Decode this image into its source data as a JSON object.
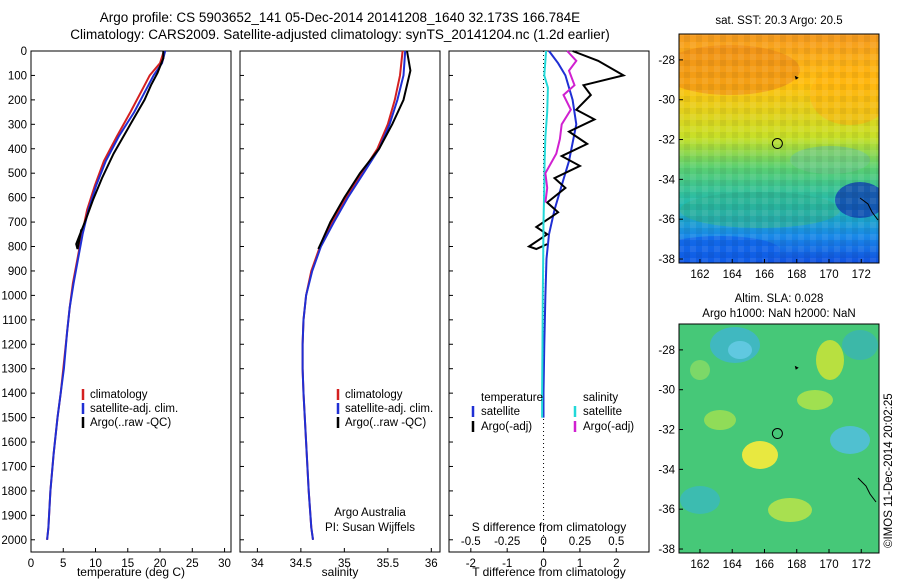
{
  "header": {
    "line1": "Argo profile: CS 5903652_141 05-Dec-2014 20141208_1640 32.173S 166.784E",
    "line2": "Climatology: CARS2009. Satellite-adjusted climatology: synTS_20141204.nc (1.2d earlier)"
  },
  "copyright": "©IMOS 11-Dec-2014 20:02:25",
  "colors": {
    "climatology": "#d42020",
    "satellite": "#1f2fd4",
    "argo": "#000000",
    "sal_satellite": "#22d8d8",
    "sal_argo": "#d020d0"
  },
  "chart_data": [
    {
      "type": "line",
      "name": "temperature",
      "xlabel": "temperature (deg C)",
      "ylabel": "",
      "xlim": [
        0,
        31
      ],
      "ylim": [
        2050,
        0
      ],
      "xticks": [
        "0",
        "5",
        "10",
        "15",
        "20",
        "25",
        "30"
      ],
      "yticks": [
        "0",
        "100",
        "200",
        "300",
        "400",
        "500",
        "600",
        "700",
        "800",
        "900",
        "1000",
        "1100",
        "1200",
        "1300",
        "1400",
        "1500",
        "1600",
        "1700",
        "1800",
        "1900",
        "2000"
      ],
      "legend": [
        "climatology",
        "satellite-adj. clim.",
        "Argo(..raw -QC)"
      ],
      "series": [
        {
          "name": "climatology",
          "color": "#d42020",
          "x": [
            20.6,
            20.0,
            18.4,
            17.4,
            15.4,
            13.3,
            11.3,
            9.9,
            8.7,
            7.9,
            7.2,
            6.5,
            6.0,
            5.6,
            5.0,
            4.6,
            4.1,
            3.5,
            3.0,
            2.7,
            2.5
          ],
          "y": [
            0,
            50,
            100,
            150,
            250,
            350,
            450,
            550,
            650,
            750,
            850,
            950,
            1050,
            1150,
            1300,
            1400,
            1500,
            1650,
            1800,
            1950,
            2000
          ]
        },
        {
          "name": "satellite-adj. clim.",
          "color": "#1f2fd4",
          "x": [
            20.8,
            20.3,
            19.0,
            18.0,
            16.0,
            13.6,
            11.6,
            10.1,
            8.9,
            8.0,
            7.3,
            6.6,
            6.0,
            5.6,
            5.1,
            4.6,
            4.1,
            3.5,
            3.0,
            2.7,
            2.5
          ],
          "y": [
            0,
            50,
            100,
            150,
            250,
            350,
            450,
            550,
            650,
            750,
            850,
            950,
            1050,
            1150,
            1300,
            1400,
            1500,
            1650,
            1800,
            1950,
            2000
          ]
        },
        {
          "name": "Argo(..raw -QC)",
          "color": "#000000",
          "x": [
            20.5,
            20.5,
            19.6,
            18.6,
            17.6,
            15.4,
            12.8,
            11.0,
            9.6,
            8.5,
            7.6,
            7.0,
            7.2,
            7.8
          ],
          "y": [
            0,
            30,
            90,
            140,
            200,
            300,
            420,
            520,
            610,
            690,
            750,
            790,
            810,
            730
          ]
        }
      ]
    },
    {
      "type": "line",
      "name": "salinity",
      "xlabel": "salinity",
      "xlim": [
        33.8,
        36.1
      ],
      "ylim": [
        2050,
        0
      ],
      "xticks": [
        "34",
        "34.5",
        "35",
        "35.5",
        "36"
      ],
      "legend": [
        "climatology",
        "satellite-adj. clim.",
        "Argo(..raw -QC)"
      ],
      "annotation": [
        "Argo Australia",
        "PI: Susan Wijffels"
      ],
      "series": [
        {
          "name": "climatology",
          "color": "#d42020",
          "x": [
            35.67,
            35.64,
            35.58,
            35.5,
            35.38,
            35.2,
            35.02,
            34.86,
            34.72,
            34.62,
            34.56,
            34.53,
            34.52,
            34.52,
            34.53,
            34.56,
            34.59,
            34.62,
            34.64
          ],
          "y": [
            0,
            100,
            200,
            300,
            400,
            500,
            600,
            700,
            800,
            900,
            1000,
            1100,
            1200,
            1300,
            1400,
            1600,
            1800,
            1950,
            2000
          ]
        },
        {
          "name": "satellite-adj. clim.",
          "color": "#1f2fd4",
          "x": [
            35.7,
            35.68,
            35.61,
            35.52,
            35.4,
            35.22,
            35.04,
            34.88,
            34.73,
            34.63,
            34.56,
            34.53,
            34.52,
            34.52,
            34.53,
            34.56,
            34.59,
            34.62,
            34.64
          ],
          "y": [
            0,
            100,
            200,
            300,
            400,
            500,
            600,
            700,
            800,
            900,
            1000,
            1100,
            1200,
            1300,
            1400,
            1600,
            1800,
            1950,
            2000
          ]
        },
        {
          "name": "Argo(..raw -QC)",
          "color": "#000000",
          "x": [
            35.72,
            35.76,
            35.68,
            35.55,
            35.4,
            35.18,
            35.0,
            34.84,
            34.74,
            34.7
          ],
          "y": [
            0,
            80,
            200,
            300,
            400,
            500,
            600,
            700,
            780,
            810
          ]
        }
      ]
    },
    {
      "type": "line",
      "name": "difference",
      "xlabel": "T difference from climatology",
      "xlabel_top": "S difference from climatology",
      "xlim": [
        -2.6,
        2.9
      ],
      "ylim": [
        2050,
        0
      ],
      "xticks": [
        "-2",
        "-1",
        "0",
        "1",
        "2"
      ],
      "xticks_top": [
        "-0.5",
        "-0.25",
        "0",
        "0.25",
        "0.5"
      ],
      "legend_titles": [
        "temperature",
        "salinity"
      ],
      "legend": [
        "satellite",
        "Argo(-adj)",
        "satellite",
        "Argo(-adj)"
      ],
      "series": [
        {
          "name": "satellite",
          "color": "#1f2fd4",
          "x": [
            0.15,
            0.4,
            0.6,
            0.8,
            0.9,
            0.7,
            0.5,
            0.3,
            0.15,
            0.08,
            0.05,
            0.02,
            0.0,
            0.0
          ],
          "y": [
            0,
            50,
            100,
            200,
            300,
            450,
            550,
            650,
            750,
            850,
            1000,
            1200,
            1400,
            1500
          ]
        },
        {
          "name": "Argo(-adj)",
          "color": "#000000",
          "x": [
            0.8,
            1.5,
            2.2,
            1.1,
            1.3,
            0.9,
            1.4,
            0.7,
            1.2,
            0.5,
            1.0,
            0.3,
            0.6,
            0.1,
            0.4,
            -0.2,
            0.1,
            -0.4,
            -0.2,
            0.1
          ],
          "y": [
            0,
            40,
            100,
            140,
            180,
            240,
            280,
            330,
            380,
            430,
            470,
            520,
            560,
            620,
            660,
            720,
            750,
            800,
            810,
            790
          ]
        },
        {
          "name": "satellite",
          "color": "#22d8d8",
          "x": [
            0.07,
            0.02,
            0.12,
            0.1,
            0.05,
            0.03,
            0.02,
            0.0,
            -0.01,
            -0.02,
            -0.03,
            -0.04,
            -0.04
          ],
          "y": [
            0,
            100,
            150,
            250,
            350,
            450,
            550,
            700,
            850,
            1000,
            1200,
            1400,
            1500
          ]
        },
        {
          "name": "Argo(-adj)",
          "color": "#d020d0",
          "x": [
            0.65,
            0.9,
            0.7,
            0.85,
            0.55,
            0.75,
            0.5,
            0.45,
            0.35,
            0.05,
            0.1,
            0.05
          ],
          "y": [
            0,
            40,
            80,
            140,
            180,
            240,
            300,
            360,
            420,
            500,
            560,
            620
          ]
        }
      ]
    },
    {
      "type": "heatmap",
      "name": "sst-map",
      "title": "sat. SST: 20.3 Argo: 20.5",
      "xlim": [
        160.7,
        173.1
      ],
      "ylim": [
        -38.2,
        -26.7
      ],
      "xticks": [
        "162",
        "164",
        "166",
        "168",
        "170",
        "172"
      ],
      "yticks": [
        "-28",
        "-30",
        "-32",
        "-34",
        "-36",
        "-38"
      ],
      "marker": {
        "x": 166.8,
        "y": -32.2
      }
    },
    {
      "type": "heatmap",
      "name": "sla-map",
      "title": [
        "Altim. SLA: 0.028",
        "Argo h1000: NaN h2000: NaN"
      ],
      "xlim": [
        160.7,
        173.1
      ],
      "ylim": [
        -38.2,
        -26.7
      ],
      "xticks": [
        "162",
        "164",
        "166",
        "168",
        "170",
        "172"
      ],
      "yticks": [
        "-28",
        "-30",
        "-32",
        "-34",
        "-36",
        "-38"
      ],
      "marker": {
        "x": 166.8,
        "y": -32.2
      }
    }
  ]
}
